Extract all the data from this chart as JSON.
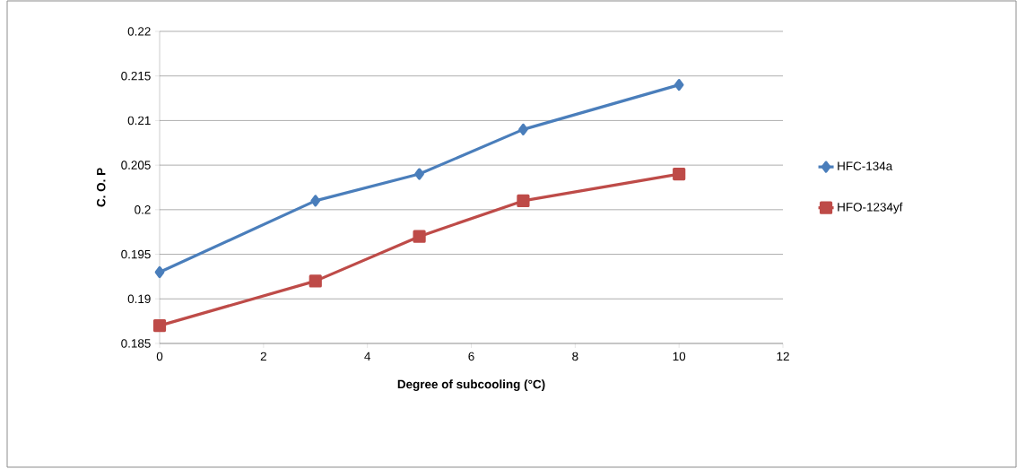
{
  "chart_data": {
    "type": "line",
    "xlabel": "Degree of subcooling (°C)",
    "ylabel": "C. O. P",
    "x": [
      0,
      3,
      5,
      7,
      10
    ],
    "series": [
      {
        "name": "HFC-134a",
        "color": "#4a7ebb",
        "marker": "diamond",
        "values": [
          0.193,
          0.201,
          0.204,
          0.209,
          0.214
        ]
      },
      {
        "name": "HFO-1234yf",
        "color": "#be4b48",
        "marker": "square",
        "values": [
          0.187,
          0.192,
          0.197,
          0.201,
          0.204
        ]
      }
    ],
    "xlim": [
      0,
      12
    ],
    "xticks": [
      0,
      2,
      4,
      6,
      8,
      10,
      12
    ],
    "ylim": [
      0.185,
      0.22
    ],
    "yticks": [
      0.185,
      0.19,
      0.195,
      0.2,
      0.205,
      0.21,
      0.215,
      0.22
    ],
    "grid": "y",
    "legend": "right",
    "line_style": "solid"
  }
}
